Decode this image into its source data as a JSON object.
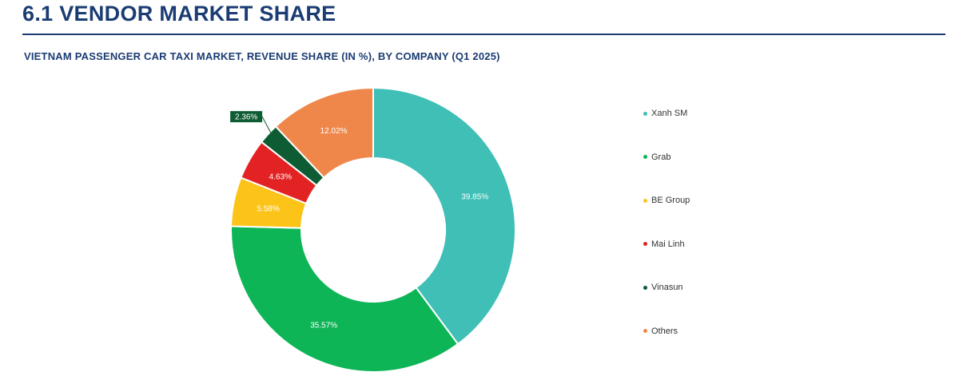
{
  "header": {
    "section_title": "6.1 VENDOR MARKET SHARE",
    "chart_title": "VIETNAM PASSENGER CAR TAXI MARKET, REVENUE SHARE (IN %), BY COMPANY (Q1 2025)"
  },
  "chart_data": {
    "type": "pie",
    "donut": true,
    "title": "VIETNAM PASSENGER CAR TAXI MARKET, REVENUE SHARE (IN %), BY COMPANY (Q1 2025)",
    "legend_position": "right",
    "series": [
      {
        "name": "Xanh SM",
        "value": 39.85,
        "label": "39.85%",
        "color": "#3fbfb6"
      },
      {
        "name": "Grab",
        "value": 35.57,
        "label": "35.57%",
        "color": "#0db556"
      },
      {
        "name": "BE Group",
        "value": 5.58,
        "label": "5.58%",
        "color": "#fcc419"
      },
      {
        "name": "Mai Linh",
        "value": 4.63,
        "label": "4.63%",
        "color": "#e32323"
      },
      {
        "name": "Vinasun",
        "value": 2.36,
        "label": "2.36%",
        "color": "#0e5c33"
      },
      {
        "name": "Others",
        "value": 12.02,
        "label": "12.02%",
        "color": "#f0874a"
      }
    ]
  }
}
